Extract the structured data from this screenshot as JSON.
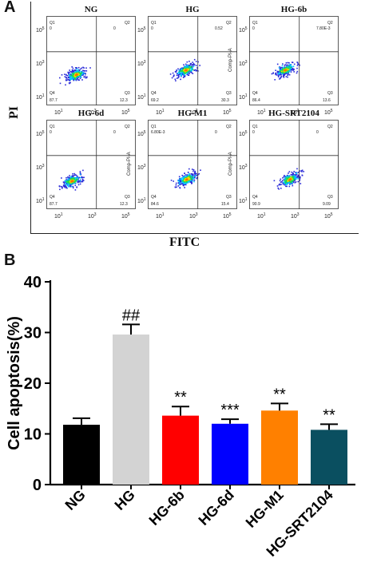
{
  "panel_a": {
    "letter": "A",
    "y_label": "PI",
    "x_label": "FITC",
    "plots": [
      {
        "title": "NG",
        "y_axis_label": "",
        "q1": "0",
        "q2": "0",
        "q3": "12.3",
        "q4": "87.7"
      },
      {
        "title": "HG",
        "y_axis_label": "",
        "q1": "0",
        "q2": "0.52",
        "q3": "30.3",
        "q4": "69.2"
      },
      {
        "title": "HG-6b",
        "y_axis_label": "Comp-PI-A",
        "q1": "0",
        "q2": "7.80E-3",
        "q3": "13.6",
        "q4": "86.4"
      },
      {
        "title": "HG-6d",
        "y_axis_label": "",
        "q1": "0",
        "q2": "0",
        "q3": "12.3",
        "q4": "87.7"
      },
      {
        "title": "HG-M1",
        "y_axis_label": "Comp-PI-A",
        "q1": "6.80E-3",
        "q2": "0",
        "q3": "15.4",
        "q4": "84.6"
      },
      {
        "title": "HG-SRT2104",
        "y_axis_label": "Comp-PI-A",
        "q1": "0",
        "q2": "0",
        "q3": "9.09",
        "q4": "90.9"
      }
    ]
  },
  "panel_b": {
    "letter": "B",
    "chart_data": {
      "type": "bar",
      "categories": [
        "NG",
        "HG",
        "HG-6b",
        "HG-6d",
        "HG-M1",
        "HG-SRT2104"
      ],
      "values": [
        11.8,
        29.6,
        13.6,
        12.0,
        14.6,
        10.8
      ],
      "errors": [
        1.3,
        2.0,
        1.8,
        0.9,
        1.4,
        1.1
      ],
      "colors": [
        "#000000",
        "#d3d3d3",
        "#ff0000",
        "#0000ff",
        "#ff8000",
        "#0a4f60"
      ],
      "annotations": [
        "",
        "##",
        "**",
        "***",
        "**",
        "**"
      ],
      "ylabel": "Cell apoptosis(%)",
      "xlabel": "",
      "ylim": [
        0,
        40
      ],
      "yticks": [
        0,
        10,
        20,
        30,
        40
      ],
      "grid": false
    }
  }
}
